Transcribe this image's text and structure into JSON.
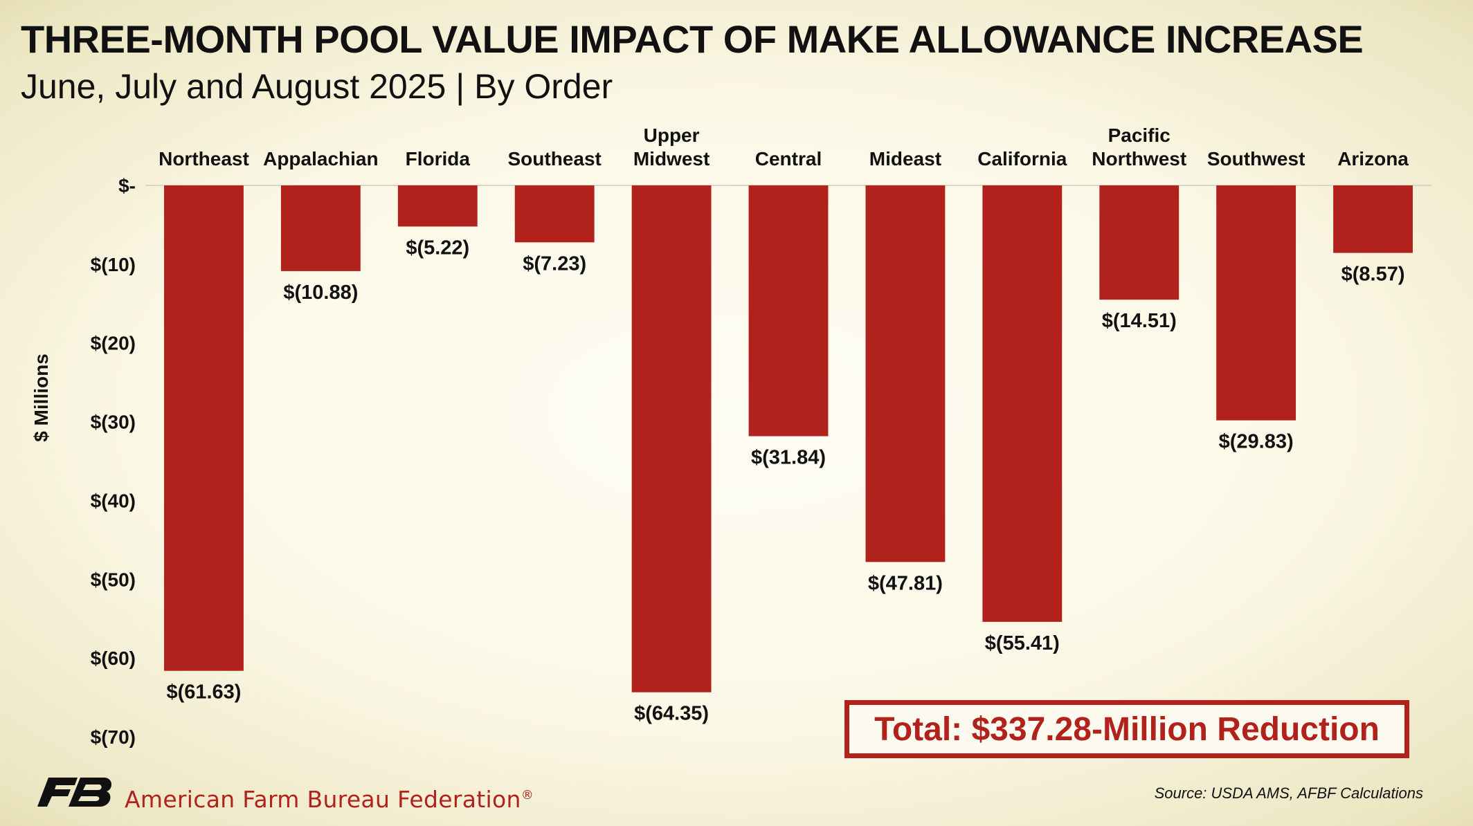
{
  "header": {
    "title": "THREE-MONTH POOL VALUE IMPACT OF MAKE ALLOWANCE INCREASE",
    "subtitle": "June, July and August 2025 | By Order"
  },
  "chart_data": {
    "type": "bar",
    "categories": [
      [
        "Northeast"
      ],
      [
        "Appalachian"
      ],
      [
        "Florida"
      ],
      [
        "Southeast"
      ],
      [
        "Upper",
        "Midwest"
      ],
      [
        "Central"
      ],
      [
        "Mideast"
      ],
      [
        "California"
      ],
      [
        "Pacific",
        "Northwest"
      ],
      [
        "Southwest"
      ],
      [
        "Arizona"
      ]
    ],
    "values": [
      -61.63,
      -10.88,
      -5.22,
      -7.23,
      -64.35,
      -31.84,
      -47.81,
      -55.41,
      -14.51,
      -29.83,
      -8.57
    ],
    "data_labels": [
      "$(61.63)",
      "$(10.88)",
      "$(5.22)",
      "$(7.23)",
      "$(64.35)",
      "$(31.84)",
      "$(47.81)",
      "$(55.41)",
      "$(14.51)",
      "$(29.83)",
      "$(8.57)"
    ],
    "ylabel": "$ Millions",
    "ylim": [
      -70,
      0
    ],
    "yticks": [
      0,
      -10,
      -20,
      -30,
      -40,
      -50,
      -60,
      -70
    ],
    "ytick_labels": [
      "$-",
      "$(10)",
      "$(20)",
      "$(30)",
      "$(40)",
      "$(50)",
      "$(60)",
      "$(70)"
    ],
    "bar_color": "#b0221b",
    "grid": false,
    "category_labels_position": "top"
  },
  "total_box": {
    "text": "Total: $337.28-Million Reduction"
  },
  "footer": {
    "org_name": "American Farm Bureau Federation",
    "registered_mark": "®",
    "source": "Source: USDA AMS, AFBF Calculations"
  },
  "colors": {
    "accent": "#b0221b",
    "text": "#111111"
  }
}
